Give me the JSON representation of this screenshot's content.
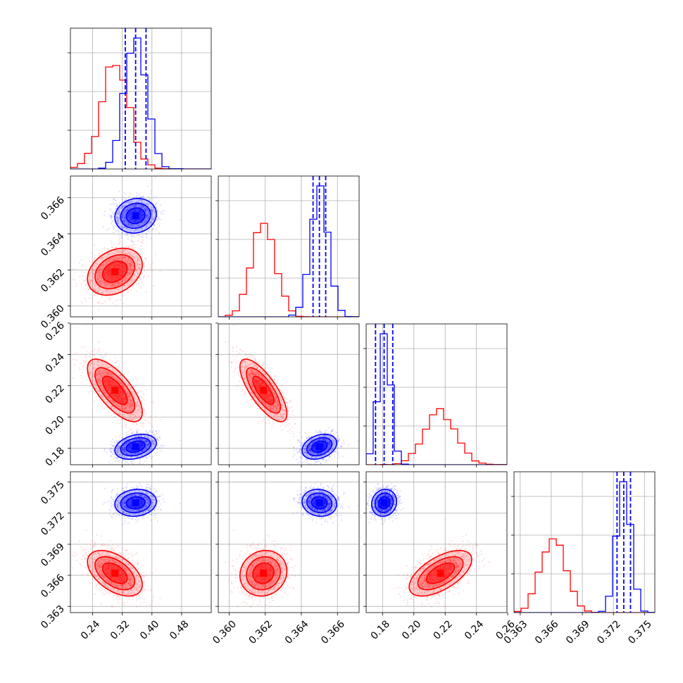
{
  "colors": {
    "red": "#ff0000",
    "blue": "#0000ff",
    "grid": "#b0b0b0",
    "axes": "#000000"
  },
  "chart_data": {
    "type": "corner",
    "title": "",
    "grid": true,
    "parameters": [
      {
        "range": [
          0.18,
          0.56
        ],
        "ticks": [
          "0.24",
          "0.32",
          "0.40",
          "0.48"
        ],
        "tick_values": [
          0.24,
          0.32,
          0.4,
          0.48
        ]
      },
      {
        "range": [
          0.3594,
          0.3672
        ],
        "ticks": [
          "0.360",
          "0.362",
          "0.364",
          "0.366"
        ],
        "tick_values": [
          0.36,
          0.362,
          0.364,
          0.366
        ]
      },
      {
        "range": [
          0.1695,
          0.2595
        ],
        "ticks": [
          "0.18",
          "0.20",
          "0.22",
          "0.24",
          "0.26"
        ],
        "tick_values": [
          0.18,
          0.2,
          0.22,
          0.24,
          0.26
        ]
      },
      {
        "range": [
          0.3624,
          0.376
        ],
        "ticks": [
          "0.363",
          "0.366",
          "0.369",
          "0.372",
          "0.375"
        ],
        "tick_values": [
          0.363,
          0.366,
          0.369,
          0.372,
          0.375
        ]
      }
    ],
    "series": [
      {
        "color": "#ff0000",
        "mean": [
          0.3,
          0.3619,
          0.217,
          0.3662
        ],
        "std": [
          0.037,
          0.00065,
          0.01,
          0.0011
        ],
        "corr": [
          [
            1,
            0.3,
            -0.7,
            -0.5
          ],
          [
            0.3,
            1,
            -0.75,
            0.1
          ],
          [
            -0.7,
            -0.75,
            1,
            0.6
          ],
          [
            -0.5,
            0.1,
            0.6,
            1
          ]
        ],
        "quantile_lines": false
      },
      {
        "color": "#0000ff",
        "mean": [
          0.356,
          0.365,
          0.181,
          0.373
        ],
        "std": [
          0.028,
          0.00048,
          0.004,
          0.00065
        ],
        "corr": [
          [
            1,
            0.1,
            0.3,
            0.1
          ],
          [
            0.1,
            1,
            0.3,
            -0.1
          ],
          [
            0.3,
            0.3,
            1,
            0.1
          ],
          [
            0.1,
            -0.1,
            0.1,
            1
          ]
        ],
        "quantile_lines": true,
        "quantiles": [
          [
            0.328,
            0.356,
            0.384
          ],
          [
            0.36465,
            0.365,
            0.36535
          ],
          [
            0.1755,
            0.181,
            0.1865
          ],
          [
            0.37235,
            0.373,
            0.37365
          ]
        ]
      }
    ]
  }
}
